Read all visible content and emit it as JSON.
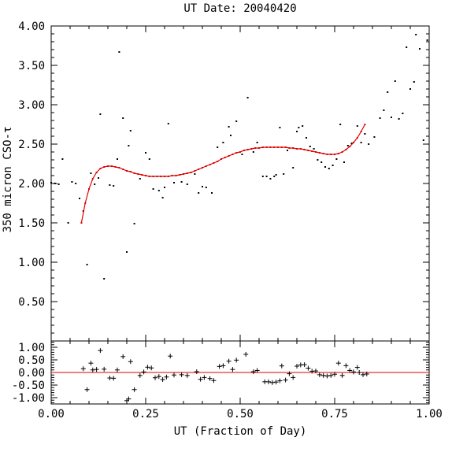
{
  "chart_data": {
    "type": "scatter",
    "title": "UT Date: 20040420",
    "xlabel": "UT (Fraction of Day)",
    "ylabel": "350 micron CSO-τ",
    "xlim": [
      0,
      1
    ],
    "grid": false,
    "top_panel": {
      "ylim": [
        0,
        4
      ],
      "yticks": [
        "0.50",
        "1.00",
        "1.50",
        "2.00",
        "2.50",
        "3.00",
        "3.50",
        "4.00"
      ],
      "ytick_values": [
        0.5,
        1.0,
        1.5,
        2.0,
        2.5,
        3.0,
        3.5,
        4.0
      ],
      "points": [
        [
          0.0,
          2.01
        ],
        [
          0.01,
          2.0
        ],
        [
          0.02,
          1.99
        ],
        [
          0.03,
          2.31
        ],
        [
          0.045,
          1.5
        ],
        [
          0.055,
          2.02
        ],
        [
          0.065,
          2.0
        ],
        [
          0.075,
          1.81
        ],
        [
          0.085,
          1.65
        ],
        [
          0.095,
          0.97
        ],
        [
          0.105,
          2.13
        ],
        [
          0.115,
          1.99
        ],
        [
          0.125,
          2.07
        ],
        [
          0.13,
          2.88
        ],
        [
          0.14,
          0.79
        ],
        [
          0.155,
          1.98
        ],
        [
          0.165,
          1.97
        ],
        [
          0.175,
          2.31
        ],
        [
          0.18,
          3.67
        ],
        [
          0.19,
          2.83
        ],
        [
          0.2,
          1.13
        ],
        [
          0.205,
          2.48
        ],
        [
          0.21,
          2.67
        ],
        [
          0.22,
          1.49
        ],
        [
          0.235,
          2.06
        ],
        [
          0.25,
          2.39
        ],
        [
          0.26,
          2.31
        ],
        [
          0.27,
          1.93
        ],
        [
          0.285,
          1.91
        ],
        [
          0.295,
          1.82
        ],
        [
          0.3,
          1.95
        ],
        [
          0.31,
          2.76
        ],
        [
          0.325,
          2.01
        ],
        [
          0.345,
          2.02
        ],
        [
          0.36,
          1.99
        ],
        [
          0.38,
          2.12
        ],
        [
          0.39,
          1.88
        ],
        [
          0.4,
          1.96
        ],
        [
          0.41,
          1.95
        ],
        [
          0.425,
          1.88
        ],
        [
          0.44,
          2.46
        ],
        [
          0.455,
          2.52
        ],
        [
          0.47,
          2.72
        ],
        [
          0.475,
          2.61
        ],
        [
          0.49,
          2.79
        ],
        [
          0.505,
          2.37
        ],
        [
          0.52,
          3.09
        ],
        [
          0.535,
          2.4
        ],
        [
          0.545,
          2.52
        ],
        [
          0.56,
          2.09
        ],
        [
          0.57,
          2.09
        ],
        [
          0.58,
          2.06
        ],
        [
          0.59,
          2.09
        ],
        [
          0.595,
          2.11
        ],
        [
          0.605,
          2.71
        ],
        [
          0.615,
          2.12
        ],
        [
          0.625,
          2.42
        ],
        [
          0.64,
          2.2
        ],
        [
          0.65,
          2.66
        ],
        [
          0.655,
          2.71
        ],
        [
          0.665,
          2.73
        ],
        [
          0.675,
          2.58
        ],
        [
          0.685,
          2.47
        ],
        [
          0.695,
          2.44
        ],
        [
          0.705,
          2.3
        ],
        [
          0.715,
          2.27
        ],
        [
          0.725,
          2.21
        ],
        [
          0.735,
          2.19
        ],
        [
          0.745,
          2.23
        ],
        [
          0.755,
          2.31
        ],
        [
          0.765,
          2.75
        ],
        [
          0.775,
          2.27
        ],
        [
          0.785,
          2.48
        ],
        [
          0.795,
          2.51
        ],
        [
          0.81,
          2.73
        ],
        [
          0.82,
          2.52
        ],
        [
          0.83,
          2.63
        ],
        [
          0.84,
          2.5
        ],
        [
          0.855,
          2.59
        ],
        [
          0.87,
          2.83
        ],
        [
          0.88,
          2.93
        ],
        [
          0.89,
          3.16
        ],
        [
          0.9,
          2.84
        ],
        [
          0.91,
          3.3
        ],
        [
          0.92,
          2.82
        ],
        [
          0.93,
          2.89
        ],
        [
          0.94,
          3.73
        ],
        [
          0.95,
          3.2
        ],
        [
          0.96,
          3.29
        ],
        [
          0.965,
          3.89
        ],
        [
          0.975,
          3.71
        ],
        [
          0.985,
          2.55
        ],
        [
          0.995,
          3.82
        ]
      ],
      "fit_points": [
        [
          0.08,
          1.5
        ],
        [
          0.09,
          1.75
        ],
        [
          0.1,
          1.93
        ],
        [
          0.11,
          2.06
        ],
        [
          0.12,
          2.14
        ],
        [
          0.13,
          2.19
        ],
        [
          0.14,
          2.21
        ],
        [
          0.15,
          2.22
        ],
        [
          0.16,
          2.22
        ],
        [
          0.17,
          2.21
        ],
        [
          0.18,
          2.2
        ],
        [
          0.19,
          2.18
        ],
        [
          0.2,
          2.16
        ],
        [
          0.21,
          2.15
        ],
        [
          0.22,
          2.13
        ],
        [
          0.23,
          2.12
        ],
        [
          0.24,
          2.11
        ],
        [
          0.25,
          2.1
        ],
        [
          0.26,
          2.09
        ],
        [
          0.27,
          2.09
        ],
        [
          0.28,
          2.09
        ],
        [
          0.29,
          2.09
        ],
        [
          0.3,
          2.09
        ],
        [
          0.31,
          2.09
        ],
        [
          0.32,
          2.1
        ],
        [
          0.33,
          2.1
        ],
        [
          0.34,
          2.11
        ],
        [
          0.35,
          2.12
        ],
        [
          0.36,
          2.13
        ],
        [
          0.37,
          2.14
        ],
        [
          0.38,
          2.16
        ],
        [
          0.39,
          2.18
        ],
        [
          0.4,
          2.2
        ],
        [
          0.41,
          2.22
        ],
        [
          0.42,
          2.24
        ],
        [
          0.43,
          2.26
        ],
        [
          0.44,
          2.28
        ],
        [
          0.45,
          2.31
        ],
        [
          0.46,
          2.33
        ],
        [
          0.47,
          2.35
        ],
        [
          0.48,
          2.37
        ],
        [
          0.49,
          2.39
        ],
        [
          0.5,
          2.4
        ],
        [
          0.51,
          2.42
        ],
        [
          0.52,
          2.43
        ],
        [
          0.53,
          2.44
        ],
        [
          0.54,
          2.45
        ],
        [
          0.55,
          2.45
        ],
        [
          0.56,
          2.46
        ],
        [
          0.57,
          2.46
        ],
        [
          0.58,
          2.46
        ],
        [
          0.59,
          2.46
        ],
        [
          0.6,
          2.46
        ],
        [
          0.61,
          2.46
        ],
        [
          0.62,
          2.46
        ],
        [
          0.63,
          2.45
        ],
        [
          0.64,
          2.45
        ],
        [
          0.65,
          2.44
        ],
        [
          0.66,
          2.44
        ],
        [
          0.67,
          2.43
        ],
        [
          0.68,
          2.42
        ],
        [
          0.69,
          2.41
        ],
        [
          0.7,
          2.4
        ],
        [
          0.71,
          2.39
        ],
        [
          0.72,
          2.38
        ],
        [
          0.73,
          2.37
        ],
        [
          0.74,
          2.37
        ],
        [
          0.75,
          2.37
        ],
        [
          0.76,
          2.38
        ],
        [
          0.77,
          2.4
        ],
        [
          0.78,
          2.43
        ],
        [
          0.79,
          2.47
        ],
        [
          0.8,
          2.52
        ],
        [
          0.81,
          2.58
        ],
        [
          0.82,
          2.66
        ],
        [
          0.83,
          2.75
        ]
      ],
      "fit_color": "#e00000"
    },
    "bottom_panel": {
      "ylim": [
        -1.25,
        1.25
      ],
      "yticks": [
        "-1.00",
        "-0.50",
        "0.00",
        "0.50",
        "1.00"
      ],
      "ytick_values": [
        -1.0,
        -0.5,
        0.0,
        0.5,
        1.0
      ],
      "zero_line_color": "#e00000",
      "residuals": [
        [
          0.085,
          0.15
        ],
        [
          0.095,
          -0.68
        ],
        [
          0.105,
          0.37
        ],
        [
          0.11,
          0.1
        ],
        [
          0.12,
          0.12
        ],
        [
          0.13,
          0.87
        ],
        [
          0.14,
          0.13
        ],
        [
          0.155,
          -0.22
        ],
        [
          0.165,
          -0.23
        ],
        [
          0.175,
          0.1
        ],
        [
          0.19,
          0.63
        ],
        [
          0.2,
          -1.12
        ],
        [
          0.205,
          -1.05
        ],
        [
          0.21,
          0.43
        ],
        [
          0.22,
          -0.68
        ],
        [
          0.235,
          -0.12
        ],
        [
          0.245,
          0.02
        ],
        [
          0.255,
          0.21
        ],
        [
          0.265,
          0.18
        ],
        [
          0.275,
          -0.21
        ],
        [
          0.285,
          -0.16
        ],
        [
          0.295,
          -0.28
        ],
        [
          0.305,
          -0.18
        ],
        [
          0.315,
          0.65
        ],
        [
          0.325,
          -0.1
        ],
        [
          0.345,
          -0.09
        ],
        [
          0.36,
          -0.12
        ],
        [
          0.385,
          0.03
        ],
        [
          0.395,
          -0.27
        ],
        [
          0.405,
          -0.2
        ],
        [
          0.42,
          -0.24
        ],
        [
          0.43,
          -0.32
        ],
        [
          0.445,
          0.24
        ],
        [
          0.455,
          0.27
        ],
        [
          0.47,
          0.45
        ],
        [
          0.48,
          0.12
        ],
        [
          0.49,
          0.49
        ],
        [
          0.515,
          0.72
        ],
        [
          0.535,
          0.03
        ],
        [
          0.545,
          0.08
        ],
        [
          0.565,
          -0.37
        ],
        [
          0.575,
          -0.37
        ],
        [
          0.585,
          -0.4
        ],
        [
          0.595,
          -0.38
        ],
        [
          0.605,
          -0.33
        ],
        [
          0.61,
          0.26
        ],
        [
          0.62,
          -0.3
        ],
        [
          0.63,
          -0.05
        ],
        [
          0.64,
          -0.2
        ],
        [
          0.65,
          0.25
        ],
        [
          0.66,
          0.3
        ],
        [
          0.67,
          0.31
        ],
        [
          0.68,
          0.17
        ],
        [
          0.69,
          0.05
        ],
        [
          0.7,
          0.06
        ],
        [
          0.71,
          -0.09
        ],
        [
          0.72,
          -0.12
        ],
        [
          0.73,
          -0.14
        ],
        [
          0.74,
          -0.12
        ],
        [
          0.75,
          -0.07
        ],
        [
          0.76,
          0.37
        ],
        [
          0.77,
          -0.12
        ],
        [
          0.78,
          0.27
        ],
        [
          0.79,
          0.08
        ],
        [
          0.8,
          0.02
        ],
        [
          0.81,
          0.2
        ],
        [
          0.815,
          0.0
        ],
        [
          0.825,
          -0.09
        ],
        [
          0.835,
          -0.06
        ]
      ]
    },
    "xticks": [
      "0.00",
      "0.25",
      "0.50",
      "0.75",
      "1.00"
    ],
    "xtick_values": [
      0.0,
      0.25,
      0.5,
      0.75,
      1.0
    ]
  }
}
